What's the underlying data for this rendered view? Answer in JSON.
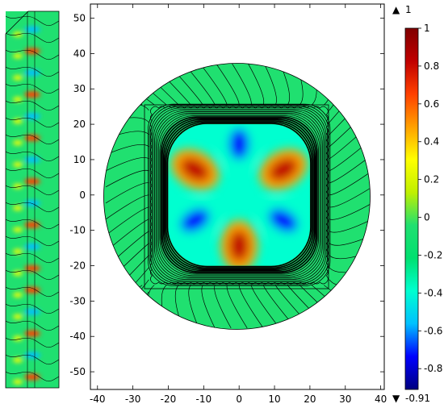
{
  "chart_data": {
    "type": "heatmap",
    "title": "",
    "xlabel": "",
    "ylabel": "",
    "xlim": [
      -42,
      41
    ],
    "ylim": [
      -55,
      54
    ],
    "x_ticks": [
      -40,
      -30,
      -20,
      -10,
      0,
      10,
      20,
      30,
      40
    ],
    "y_ticks": [
      50,
      40,
      30,
      20,
      10,
      0,
      -10,
      -20,
      -30,
      -40,
      -50
    ],
    "grid": false,
    "colorbar": {
      "max_label": "1",
      "min_label": "-0.91",
      "max_marker": "▲",
      "min_marker": "▼",
      "ticks": [
        1,
        0.8,
        0.6,
        0.4,
        0.2,
        0,
        -0.2,
        -0.4,
        -0.6,
        -0.8
      ],
      "tick_labels": [
        "1",
        "0.8",
        "0.6",
        "0.4",
        "0.2",
        "0",
        "-0.2",
        "-0.4",
        "-0.6",
        "-0.8"
      ],
      "range": [
        -0.91,
        1
      ],
      "colormap": [
        "#000080",
        "#0000ff",
        "#00c0ff",
        "#00ffd0",
        "#00e070",
        "#20e070",
        "#c0f000",
        "#ffff00",
        "#ffa000",
        "#ff4000",
        "#c00000",
        "#800000"
      ]
    },
    "domain": {
      "circle_radius": 36.5,
      "square_half_width": 25.5,
      "core_half_width": 20
    },
    "field_pattern": {
      "background_value": 0,
      "angular_order": 6,
      "peak_value": 1,
      "trough_value": -0.91,
      "positive_lobes_deg": [
        30,
        150,
        270
      ],
      "negative_lobes_deg": [
        90,
        210,
        330
      ]
    },
    "inset_strip": {
      "y_range": [
        -52,
        52
      ],
      "description_colors": [
        "#20e070",
        "#ff4000",
        "#0040ff",
        "#c0f000"
      ]
    }
  }
}
